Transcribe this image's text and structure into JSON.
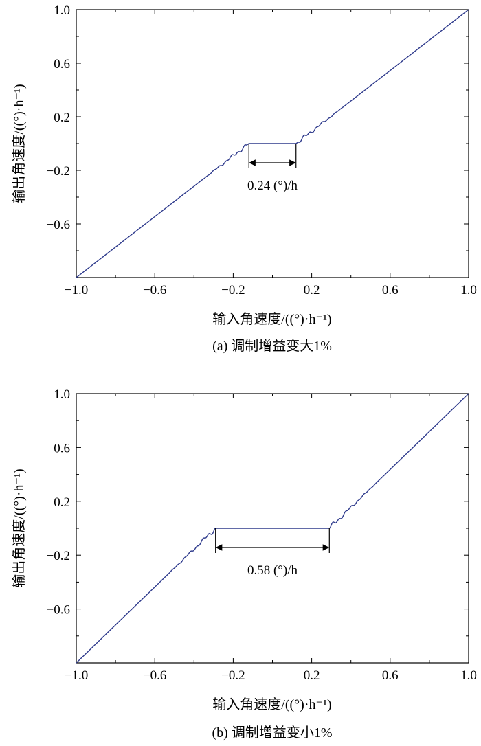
{
  "chart_data": [
    {
      "type": "line",
      "caption": "(a) 调制增益变大1%",
      "xlabel": "输入角速度/((°)·h⁻¹)",
      "ylabel": "输出角速度/((°)·h⁻¹)",
      "xlim": [
        -1.0,
        1.0
      ],
      "ylim": [
        -1.0,
        1.0
      ],
      "xticks": [
        -1.0,
        -0.6,
        -0.2,
        0.2,
        0.6,
        1.0
      ],
      "xtick_labels": [
        "−1.0",
        "−0.6",
        "−0.2",
        "0.2",
        "0.6",
        "1.0"
      ],
      "yticks": [
        -0.6,
        -0.2,
        0.2,
        0.6,
        1.0
      ],
      "ytick_labels": [
        "−0.6",
        "−0.2",
        "0.2",
        "0.6",
        "1.0"
      ],
      "series_color": "#2e3a8c",
      "dead_zone": [
        -0.12,
        0.12
      ],
      "dead_zone_y": 0.0,
      "annotation": "0.24 (°)/h",
      "line_segments": [
        {
          "x": [
            -1.0,
            -0.12
          ],
          "y": [
            -1.0,
            0.0
          ]
        },
        {
          "x": [
            -0.12,
            0.12
          ],
          "y": [
            0.0,
            0.0
          ]
        },
        {
          "x": [
            0.12,
            1.0
          ],
          "y": [
            0.0,
            1.0
          ]
        }
      ]
    },
    {
      "type": "line",
      "caption": "(b) 调制增益变小1%",
      "xlabel": "输入角速度/((°)·h⁻¹)",
      "ylabel": "输出角速度/((°)·h⁻¹)",
      "xlim": [
        -1.0,
        1.0
      ],
      "ylim": [
        -1.0,
        1.0
      ],
      "xticks": [
        -1.0,
        -0.6,
        -0.2,
        0.2,
        0.6,
        1.0
      ],
      "xtick_labels": [
        "−1.0",
        "−0.6",
        "−0.2",
        "0.2",
        "0.6",
        "1.0"
      ],
      "yticks": [
        -0.6,
        -0.2,
        0.2,
        0.6,
        1.0
      ],
      "ytick_labels": [
        "−0.6",
        "−0.2",
        "0.2",
        "0.6",
        "1.0"
      ],
      "series_color": "#2e3a8c",
      "dead_zone": [
        -0.29,
        0.29
      ],
      "dead_zone_y": 0.0,
      "annotation": "0.58 (°)/h",
      "line_segments": [
        {
          "x": [
            -1.0,
            -0.29
          ],
          "y": [
            -1.0,
            0.0
          ]
        },
        {
          "x": [
            -0.29,
            0.29
          ],
          "y": [
            0.0,
            0.0
          ]
        },
        {
          "x": [
            0.29,
            1.0
          ],
          "y": [
            0.0,
            1.0
          ]
        }
      ]
    }
  ]
}
